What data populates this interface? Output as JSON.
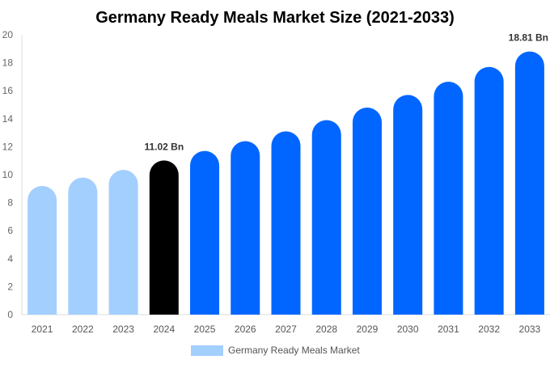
{
  "chart_data": {
    "type": "bar",
    "title": "Germany Ready Meals Market Size (2021-2033)",
    "xlabel": "",
    "ylabel": "",
    "ylim": [
      0,
      20
    ],
    "yticks": [
      0,
      2,
      4,
      6,
      8,
      10,
      12,
      14,
      16,
      18,
      20
    ],
    "categories": [
      "2021",
      "2022",
      "2023",
      "2024",
      "2025",
      "2026",
      "2027",
      "2028",
      "2029",
      "2030",
      "2031",
      "2032",
      "2033"
    ],
    "series": [
      {
        "name": "Germany Ready Meals Market",
        "values": [
          9.2,
          9.8,
          10.35,
          11.02,
          11.7,
          12.4,
          13.1,
          13.9,
          14.8,
          15.7,
          16.65,
          17.7,
          18.81
        ]
      }
    ],
    "data_labels": [
      {
        "index": 3,
        "text": "11.02 Bn"
      },
      {
        "index": 12,
        "text": "18.81 Bn"
      }
    ],
    "colors": {
      "historical": "#a3cfff",
      "current": "#000000",
      "forecast": "#0066ff"
    },
    "color_groups": [
      "historical",
      "historical",
      "historical",
      "current",
      "forecast",
      "forecast",
      "forecast",
      "forecast",
      "forecast",
      "forecast",
      "forecast",
      "forecast",
      "forecast"
    ],
    "legend": {
      "label": "Germany Ready Meals Market",
      "color": "#a3cfff",
      "position": "bottom"
    },
    "grid": false
  }
}
